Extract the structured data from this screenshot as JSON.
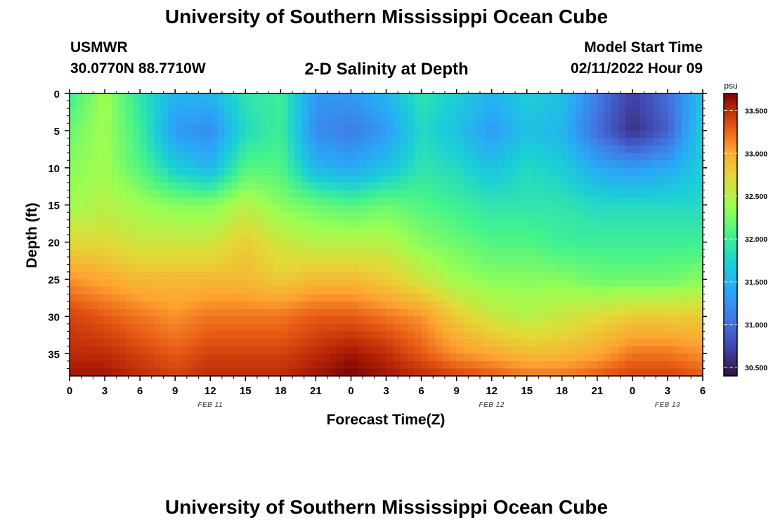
{
  "header": {
    "title": "University of Southern Mississippi Ocean Cube",
    "station": "USMWR",
    "coords": "30.0770N  88.7710W",
    "plot_title": "2-D Salinity at Depth",
    "model_start_label": "Model Start Time",
    "model_start_value": "02/11/2022 Hour 09"
  },
  "footer": {
    "title": "University of Southern Mississippi Ocean Cube"
  },
  "colors": {
    "scale_low": "#2c0b3d",
    "scale_mid": "#1eb5d9",
    "scale_high": "#7a0403"
  },
  "chart_data": {
    "type": "heatmap",
    "xlabel": "Forecast Time(Z)",
    "ylabel": "Depth (ft)",
    "x_ticks": [
      "0",
      "3",
      "6",
      "9",
      "12",
      "15",
      "18",
      "21",
      "0",
      "3",
      "6",
      "9",
      "12",
      "15",
      "18",
      "21",
      "0",
      "3",
      "6"
    ],
    "date_labels": [
      {
        "label": "FEB 11",
        "at_tick_index": 4
      },
      {
        "label": "FEB 12",
        "at_tick_index": 12
      },
      {
        "label": "FEB 13",
        "at_tick_index": 17
      }
    ],
    "x_range_hours": [
      0,
      54
    ],
    "y_ticks": [
      0,
      5,
      10,
      15,
      20,
      25,
      30,
      35
    ],
    "ylim": [
      0,
      38
    ],
    "y_inverted": true,
    "colorbar": {
      "unit": "psu",
      "ticks": [
        "33.500",
        "33.000",
        "32.500",
        "32.000",
        "31.500",
        "31.000",
        "30.500"
      ],
      "range": [
        30.4,
        33.7
      ]
    },
    "depths_ft": [
      0,
      5,
      10,
      15,
      20,
      25,
      30,
      35,
      38
    ],
    "times_h": [
      0,
      3,
      6,
      9,
      12,
      15,
      18,
      21,
      24,
      27,
      30,
      33,
      36,
      39,
      42,
      45,
      48,
      51,
      54
    ],
    "salinity": [
      [
        32.0,
        32.4,
        31.9,
        31.5,
        31.5,
        31.9,
        32.0,
        31.3,
        31.3,
        31.5,
        31.9,
        31.7,
        31.5,
        31.7,
        31.6,
        31.1,
        30.7,
        31.0,
        31.6
      ],
      [
        32.2,
        32.4,
        32.0,
        31.3,
        31.2,
        31.8,
        32.0,
        31.2,
        31.1,
        31.3,
        31.8,
        31.6,
        31.3,
        31.6,
        31.5,
        31.0,
        30.6,
        30.9,
        31.7
      ],
      [
        32.3,
        32.4,
        32.1,
        31.7,
        31.5,
        32.1,
        32.1,
        31.5,
        31.4,
        31.6,
        31.9,
        31.8,
        31.6,
        31.8,
        31.7,
        31.4,
        31.3,
        31.4,
        31.7
      ],
      [
        32.4,
        32.5,
        32.4,
        32.3,
        32.3,
        32.5,
        32.3,
        32.2,
        32.1,
        32.2,
        32.1,
        32.0,
        31.9,
        31.9,
        31.9,
        31.8,
        31.8,
        31.8,
        31.8
      ],
      [
        32.7,
        32.7,
        32.6,
        32.6,
        32.6,
        32.8,
        32.6,
        32.5,
        32.5,
        32.5,
        32.3,
        32.2,
        32.1,
        32.1,
        32.0,
        32.0,
        32.0,
        32.0,
        32.0
      ],
      [
        33.1,
        33.0,
        32.9,
        32.9,
        32.9,
        32.9,
        32.8,
        32.9,
        32.9,
        32.8,
        32.6,
        32.4,
        32.3,
        32.3,
        32.3,
        32.2,
        32.2,
        32.2,
        32.3
      ],
      [
        33.4,
        33.3,
        33.2,
        33.1,
        33.2,
        33.2,
        33.2,
        33.3,
        33.3,
        33.2,
        33.1,
        32.8,
        32.6,
        32.5,
        32.6,
        32.7,
        32.8,
        32.8,
        32.8
      ],
      [
        33.5,
        33.5,
        33.4,
        33.3,
        33.4,
        33.4,
        33.4,
        33.5,
        33.6,
        33.5,
        33.3,
        33.1,
        33.0,
        32.9,
        32.9,
        33.0,
        33.2,
        33.2,
        33.1
      ],
      [
        33.6,
        33.6,
        33.5,
        33.4,
        33.5,
        33.5,
        33.5,
        33.6,
        33.7,
        33.6,
        33.5,
        33.4,
        33.3,
        33.2,
        33.2,
        33.3,
        33.4,
        33.4,
        33.3
      ]
    ]
  }
}
